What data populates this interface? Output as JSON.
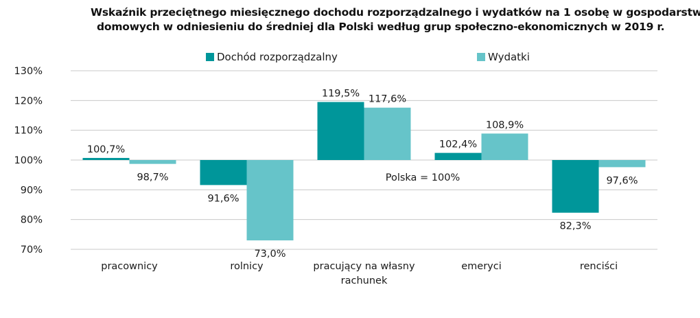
{
  "title": {
    "line1": "Wskaźnik przeciętnego miesięcznego dochodu rozporządzalnego i wydatków na 1 osobę w gospodarstwach",
    "line2": "domowych w odniesieniu do średniej dla Polski według grup społeczno-ekonomicznych w 2019 r."
  },
  "annotation": "Polska = 100%",
  "colors": {
    "income": "#00969a",
    "expenses": "#66c4c9",
    "grid": "#c8c8c8"
  },
  "chart_data": {
    "type": "bar",
    "categories": [
      "pracownicy",
      "rolnicy",
      "pracujący na własny rachunek",
      "emeryci",
      "renciści"
    ],
    "category_lines": [
      [
        "pracownicy"
      ],
      [
        "rolnicy"
      ],
      [
        "pracujący na własny",
        "rachunek"
      ],
      [
        "emeryci"
      ],
      [
        "renciści"
      ]
    ],
    "series": [
      {
        "name": "Dochód rozporządzalny",
        "values": [
          100.7,
          91.6,
          119.5,
          102.4,
          82.3
        ],
        "labels": [
          "100,7%",
          "91,6%",
          "119,5%",
          "102,4%",
          "82,3%"
        ]
      },
      {
        "name": "Wydatki",
        "values": [
          98.7,
          73.0,
          117.6,
          108.9,
          97.6
        ],
        "labels": [
          "98,7%",
          "73,0%",
          "117,6%",
          "108,9%",
          "97,6%"
        ]
      }
    ],
    "baseline": 100,
    "ylim": [
      70,
      130
    ],
    "yticks": [
      70,
      80,
      90,
      100,
      110,
      120,
      130
    ],
    "ytick_labels": [
      "70%",
      "80%",
      "90%",
      "100%",
      "110%",
      "120%",
      "130%"
    ],
    "grid": true,
    "legend_position": "top"
  }
}
